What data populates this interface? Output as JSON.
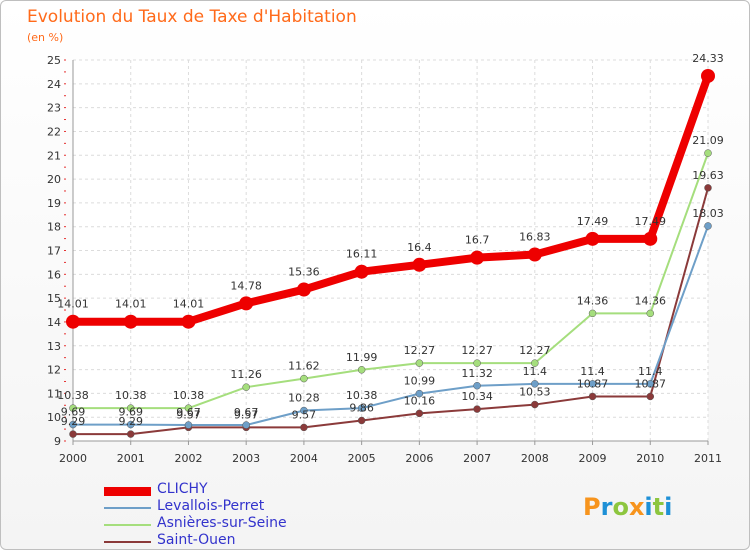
{
  "title": "Evolution du Taux de Taxe d'Habitation",
  "unit": "(en %)",
  "brand": "Proxiti",
  "brand_colors": [
    "#f7941d",
    "#1e90d6",
    "#8dc63f",
    "#f7941d",
    "#1e90d6",
    "#8dc63f",
    "#1e90d6"
  ],
  "colors": {
    "title": "#ff6a1a",
    "legend_text": "#3333cc"
  },
  "chart_data": {
    "type": "line",
    "title": "Evolution du Taux de Taxe d'Habitation",
    "ylabel": "(en %)",
    "x": [
      "2000",
      "2001",
      "2002",
      "2003",
      "2004",
      "2005",
      "2006",
      "2007",
      "2008",
      "2009",
      "2010",
      "2011"
    ],
    "ylim": [
      9,
      25
    ],
    "yticks": [
      "9",
      "10",
      "11",
      "12",
      "13",
      "14",
      "15",
      "16",
      "17",
      "18",
      "19",
      "20",
      "21",
      "22",
      "23",
      "24",
      "25"
    ],
    "grid": true,
    "legend": "bottom-left",
    "series": [
      {
        "name": "CLICHY",
        "color": "#ee0000",
        "values": [
          14.01,
          14.01,
          14.01,
          14.78,
          15.36,
          16.11,
          16.4,
          16.7,
          16.83,
          17.49,
          17.49,
          24.33
        ],
        "labels": [
          "14.01",
          "14.01",
          "14.01",
          "14.78",
          "15.36",
          "16.11",
          "16.4",
          "16.7",
          "16.83",
          "17.49",
          "17.49",
          "24.33"
        ]
      },
      {
        "name": "Levallois-Perret",
        "color": "#6e9fc8",
        "values": [
          9.69,
          9.69,
          9.67,
          9.67,
          10.28,
          10.38,
          10.99,
          11.32,
          11.4,
          11.4,
          11.4,
          18.03
        ],
        "labels": [
          "9.69",
          "9.69",
          "9.67",
          "9.67",
          "10.28",
          "10.38",
          "10.99",
          "11.32",
          "11.4",
          "11.4",
          "11.4",
          "18.03"
        ]
      },
      {
        "name": "Asnières-sur-Seine",
        "color": "#a5de7d",
        "values": [
          10.38,
          10.38,
          10.38,
          11.26,
          11.62,
          11.99,
          12.27,
          12.27,
          12.27,
          14.36,
          14.36,
          21.09
        ],
        "labels": [
          "10.38",
          "10.38",
          "10.38",
          "11.26",
          "11.62",
          "11.99",
          "12.27",
          "12.27",
          "12.27",
          "14.36",
          "14.36",
          "21.09"
        ]
      },
      {
        "name": "Saint-Ouen",
        "color": "#8b3a3a",
        "values": [
          9.29,
          9.29,
          9.57,
          9.57,
          9.57,
          9.86,
          10.16,
          10.34,
          10.53,
          10.87,
          10.87,
          19.63
        ],
        "labels": [
          "9.29",
          "9.29",
          "9.57",
          "9.57",
          "9.57",
          "9.86",
          "10.16",
          "10.34",
          "10.53",
          "10.87",
          "10.87",
          "19.63"
        ]
      }
    ]
  }
}
